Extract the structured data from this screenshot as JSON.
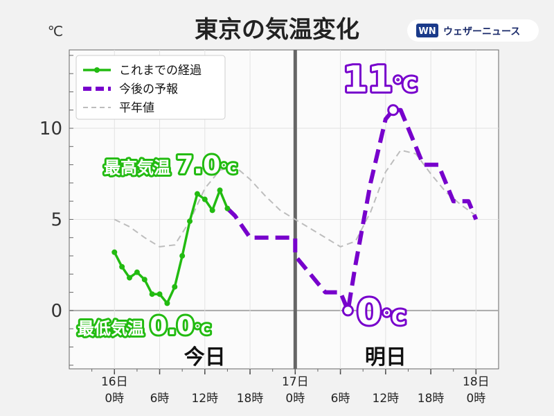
{
  "title": "東京の気温変化",
  "brand": {
    "logo_text": "WN",
    "name": "ウェザーニュース",
    "colors": {
      "logo": "#1a3a8a"
    }
  },
  "chart_data": {
    "type": "line",
    "unit_label": "℃",
    "ylim": [
      -3.2,
      14.3
    ],
    "xlim": [
      -6,
      51
    ],
    "yticks": [
      0,
      5,
      10
    ],
    "xticks": [
      {
        "x": 0,
        "line1": "16日",
        "line2": "0時"
      },
      {
        "x": 6,
        "line1": "",
        "line2": "6時"
      },
      {
        "x": 12,
        "line1": "",
        "line2": "12時"
      },
      {
        "x": 18,
        "line1": "",
        "line2": "18時"
      },
      {
        "x": 24,
        "line1": "17日",
        "line2": "0時"
      },
      {
        "x": 30,
        "line1": "",
        "line2": "6時"
      },
      {
        "x": 36,
        "line1": "",
        "line2": "12時"
      },
      {
        "x": 42,
        "line1": "",
        "line2": "18時"
      },
      {
        "x": 48,
        "line1": "18日",
        "line2": "0時"
      }
    ],
    "grid": true,
    "legend_position": "top-left",
    "divider_x": 24,
    "day_labels": [
      {
        "x": 12,
        "text": "今日"
      },
      {
        "x": 36,
        "text": "明日"
      }
    ],
    "series": [
      {
        "name": "これまでの経過",
        "style": "solid-markers",
        "color": "#22bb11",
        "x": [
          0,
          1,
          2,
          3,
          4,
          5,
          6,
          7,
          8,
          9,
          10,
          11,
          12,
          13,
          14,
          15
        ],
        "y": [
          3.2,
          2.4,
          1.8,
          2.1,
          1.7,
          0.9,
          0.9,
          0.4,
          1.3,
          3.0,
          4.9,
          6.4,
          6.1,
          5.5,
          6.6,
          5.6
        ]
      },
      {
        "name": "今後の予報",
        "style": "dashed",
        "color": "#7700cc",
        "x": [
          15,
          16,
          18,
          19,
          21,
          22,
          24,
          24,
          26,
          27,
          28,
          29,
          30,
          31,
          32,
          34,
          36,
          37,
          38,
          39,
          40,
          41,
          42,
          43,
          44,
          45,
          46,
          47,
          48
        ],
        "y": [
          5.6,
          5.2,
          4.0,
          4.0,
          4.0,
          4.0,
          4.0,
          3.0,
          2.0,
          1.5,
          1.0,
          1.0,
          1.0,
          0.0,
          2.5,
          7.0,
          10.5,
          11.0,
          11.0,
          10.0,
          9.0,
          8.0,
          8.0,
          8.0,
          7.0,
          6.0,
          6.0,
          6.0,
          5.0
        ]
      },
      {
        "name": "平年値",
        "style": "dashed-thin",
        "color": "#bdbdbd",
        "x": [
          0,
          2,
          4,
          6,
          8,
          10,
          12,
          14,
          16,
          18,
          20,
          22,
          24,
          26,
          28,
          30,
          32,
          34,
          36,
          38,
          40,
          42,
          44,
          46,
          48
        ],
        "y": [
          5.0,
          4.6,
          4.0,
          3.5,
          3.6,
          4.9,
          6.7,
          7.7,
          7.9,
          7.2,
          6.3,
          5.5,
          5.0,
          4.5,
          4.0,
          3.5,
          3.8,
          5.4,
          7.6,
          8.8,
          8.6,
          7.5,
          6.5,
          5.8,
          5.2
        ]
      }
    ],
    "annotations": [
      {
        "label": "最高気温",
        "value": "7.0",
        "unit": "℃",
        "color": "#22bb11",
        "at_x": 14,
        "at_y": 8.2,
        "marker": false
      },
      {
        "label": "最低気温",
        "value": "0.0",
        "unit": "℃",
        "color": "#22bb11",
        "at_x": 4,
        "at_y": -0.5,
        "marker": false
      },
      {
        "label": "",
        "value": "11",
        "unit": "℃",
        "color": "#7700cc",
        "at_x": 37,
        "at_y": 11,
        "marker": true
      },
      {
        "label": "",
        "value": "0",
        "unit": "℃",
        "color": "#7700cc",
        "at_x": 31,
        "at_y": 0,
        "marker": true
      }
    ]
  }
}
